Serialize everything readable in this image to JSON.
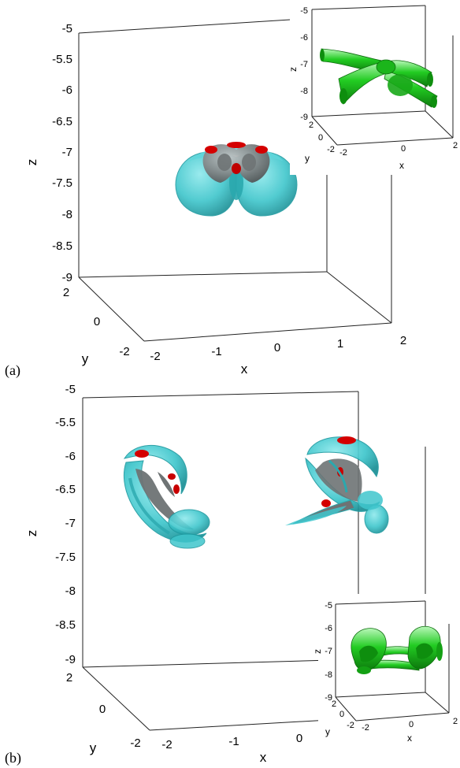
{
  "panels": [
    {
      "label": "(a)",
      "main": {
        "z_ticks": [
          "-5",
          "-5.5",
          "-6",
          "-6.5",
          "-7",
          "-7.5",
          "-8",
          "-8.5",
          "-9"
        ],
        "y_ticks": [
          "2",
          "0",
          "-2"
        ],
        "x_ticks": [
          "-2",
          "-1",
          "0",
          "1",
          "2"
        ],
        "zlabel": "z",
        "ylabel": "y",
        "xlabel": "x"
      },
      "inset": {
        "z_ticks": [
          "-5",
          "-6",
          "-7",
          "-8",
          "-9"
        ],
        "y_ticks": [
          "2",
          "0",
          "-2"
        ],
        "x_ticks": [
          "-2",
          "0",
          "2"
        ],
        "zlabel": "z",
        "ylabel": "y",
        "xlabel": "x"
      }
    },
    {
      "label": "(b)",
      "main": {
        "z_ticks": [
          "-5",
          "-5.5",
          "-6",
          "-6.5",
          "-7",
          "-7.5",
          "-8",
          "-8.5",
          "-9"
        ],
        "y_ticks": [
          "2",
          "0",
          "-2"
        ],
        "x_ticks": [
          "-2",
          "-1",
          "0"
        ],
        "zlabel": "z",
        "ylabel": "y",
        "xlabel": "x"
      },
      "inset": {
        "z_ticks": [
          "-5",
          "-6",
          "-7",
          "-8",
          "-9"
        ],
        "y_ticks": [
          "2",
          "0",
          "-2"
        ],
        "x_ticks": [
          "-2",
          "0",
          "2"
        ],
        "zlabel": "z",
        "ylabel": "y",
        "xlabel": "x"
      }
    }
  ],
  "colors": {
    "isosurface_outer": "#3fc6cc",
    "isosurface_inner": "#7a7f80",
    "isosurface_core": "#e00000",
    "inset_tube": "#1ec81e"
  }
}
